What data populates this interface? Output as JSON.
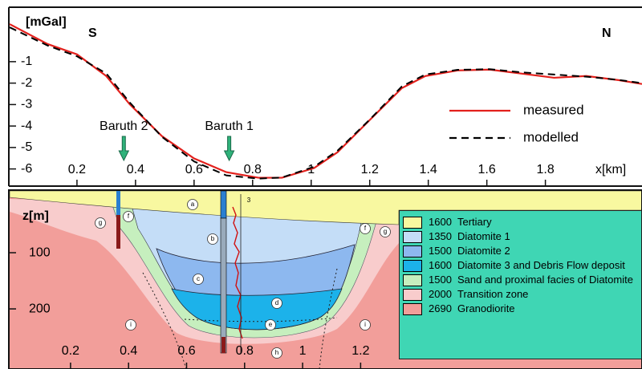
{
  "chart_data": [
    {
      "type": "line",
      "y_label": "[mGal]",
      "x_label": "x[km]",
      "annotations": [
        "S",
        "N"
      ],
      "wells": [
        {
          "name": "Baruth 2",
          "x": 0.36
        },
        {
          "name": "Baruth 1",
          "x": 0.72
        }
      ],
      "x": [
        -0.03,
        0.1,
        0.2,
        0.3,
        0.38,
        0.49,
        0.6,
        0.71,
        0.82,
        0.9,
        1.01,
        1.09,
        1.2,
        1.31,
        1.39,
        1.5,
        1.61,
        1.72,
        1.83,
        1.94,
        2.05,
        2.13
      ],
      "series": [
        {
          "name": "measured",
          "color": "#e3201c",
          "dashed": false,
          "values": [
            0.75,
            -0.18,
            -0.66,
            -1.67,
            -2.98,
            -4.47,
            -5.51,
            -6.15,
            -6.41,
            -6.41,
            -5.96,
            -5.22,
            -3.72,
            -2.23,
            -1.67,
            -1.41,
            -1.37,
            -1.56,
            -1.75,
            -1.67,
            -1.86,
            -2.04
          ]
        },
        {
          "name": "modelled",
          "color": "#000000",
          "dashed": true,
          "values": [
            0.6,
            -0.25,
            -0.75,
            -1.55,
            -2.9,
            -4.5,
            -5.65,
            -6.3,
            -6.45,
            -6.4,
            -5.9,
            -5.15,
            -3.7,
            -2.15,
            -1.6,
            -1.38,
            -1.35,
            -1.5,
            -1.6,
            -1.7,
            -1.85,
            -2.0
          ]
        }
      ],
      "xlim": [
        -0.03,
        2.13
      ],
      "ylim": [
        -6.8,
        1.5
      ],
      "xticks": [
        0.2,
        0.4,
        0.6,
        0.8,
        1.0,
        1.2,
        1.4,
        1.6,
        1.8
      ],
      "yticks": [
        -1,
        -2,
        -3,
        -4,
        -5,
        -6
      ]
    },
    {
      "type": "section",
      "y_label": "z[m]",
      "xlim": [
        -0.01,
        2.17
      ],
      "ylim": [
        307,
        -10
      ],
      "xticks": [
        0.2,
        0.4,
        0.6,
        0.8,
        1.0,
        1.2
      ],
      "yticks": [
        100,
        200
      ],
      "layers": [
        {
          "density": 1600,
          "name": "Tertiary",
          "color": "#f8f8a0"
        },
        {
          "density": 1350,
          "name": "Diatomite 1",
          "color": "#c4ddf7"
        },
        {
          "density": 1500,
          "name": "Diatomite 2",
          "color": "#8db8ef"
        },
        {
          "density": 1600,
          "name": "Diatomite 3 and Debris Flow deposit",
          "color": "#1cb2ea"
        },
        {
          "density": 1500,
          "name": "Sand and proximal facies of Diatomite",
          "color": "#c6efbe"
        },
        {
          "density": 2000,
          "name": "Transition zone",
          "color": "#f8cccc"
        },
        {
          "density": 2690,
          "name": "Granodiorite",
          "color": "#f29e9a"
        }
      ],
      "region_labels": [
        "a",
        "b",
        "c",
        "d",
        "e",
        "f",
        "f",
        "g",
        "g",
        "h",
        "i",
        "i",
        "3"
      ]
    }
  ]
}
